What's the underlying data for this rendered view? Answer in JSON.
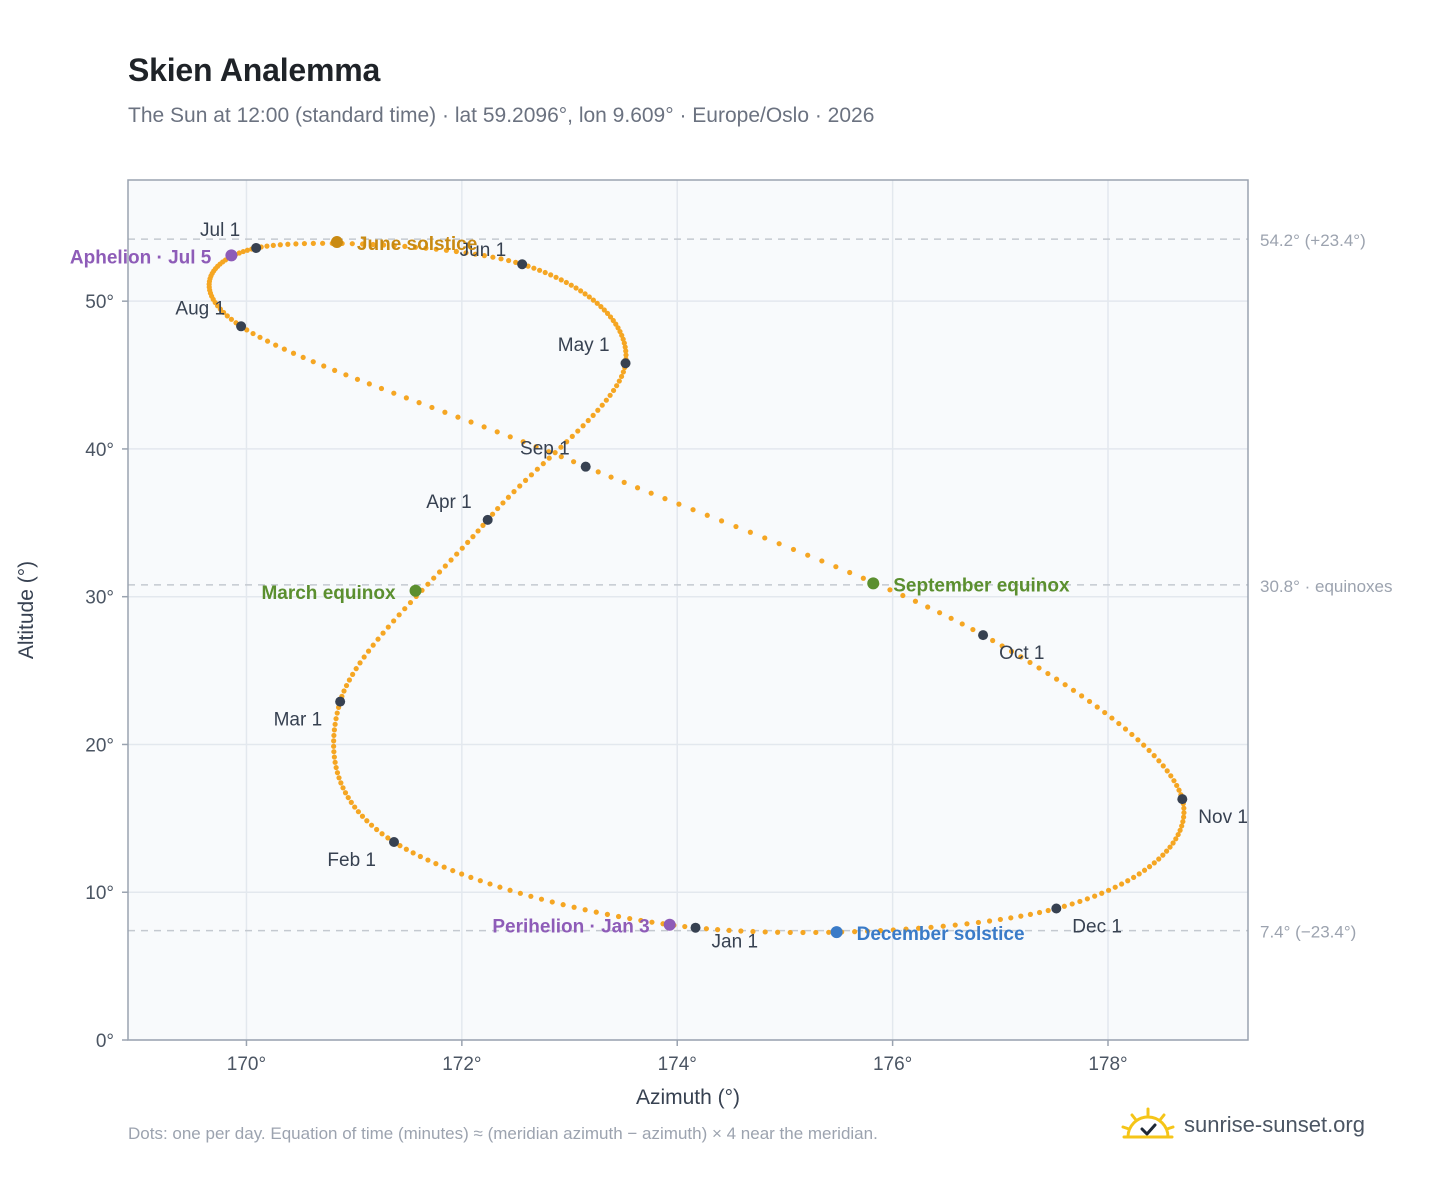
{
  "header": {
    "title": "Skien Analemma",
    "subtitle": "The Sun at 12:00 (standard time) · lat 59.2096°, lon 9.609° · Europe/Oslo · 2026"
  },
  "footer": {
    "note": "Dots: one per day. Equation of time (minutes) ≈ (meridian azimuth − azimuth) × 4 near the meridian.",
    "brand": "sunrise-sunset.org",
    "brand_icon": "sun-check-icon"
  },
  "colors": {
    "curve": "#f5a623",
    "month_marker": "#374151",
    "solstice_june": "#c98a12",
    "solstice_december": "#3a7bc8",
    "equinox": "#5b8f2f",
    "aphelion": "#8e5cb8",
    "reference_line": "#c4c9d0",
    "plot_bg": "#f8fafc",
    "grid": "#e3e8ee",
    "axis": "#9aa3b0"
  },
  "chart_data": {
    "type": "scatter",
    "title": "Skien Analemma",
    "xlabel": "Azimuth (°)",
    "ylabel": "Altitude (°)",
    "xlim": [
      168.9,
      179.3
    ],
    "ylim": [
      0,
      58.2
    ],
    "xticks": [
      170,
      172,
      174,
      176,
      178
    ],
    "xtick_labels": [
      "170°",
      "172°",
      "174°",
      "176°",
      "178°"
    ],
    "yticks": [
      0,
      10,
      20,
      30,
      40,
      50
    ],
    "ytick_labels": [
      "0°",
      "10°",
      "20°",
      "30°",
      "40°",
      "50°"
    ],
    "grid": true,
    "month_markers": [
      {
        "label": "Jan 1",
        "az": 174.17,
        "alt": 7.6
      },
      {
        "label": "Feb 1",
        "az": 171.37,
        "alt": 13.4
      },
      {
        "label": "Mar 1",
        "az": 170.87,
        "alt": 22.9
      },
      {
        "label": "Apr 1",
        "az": 172.24,
        "alt": 35.2
      },
      {
        "label": "May 1",
        "az": 173.52,
        "alt": 45.8
      },
      {
        "label": "Jun 1",
        "az": 172.56,
        "alt": 52.5
      },
      {
        "label": "Jul 1",
        "az": 170.09,
        "alt": 53.6
      },
      {
        "label": "Aug 1",
        "az": 169.95,
        "alt": 48.3
      },
      {
        "label": "Sep 1",
        "az": 173.15,
        "alt": 38.8
      },
      {
        "label": "Oct 1",
        "az": 176.84,
        "alt": 27.4
      },
      {
        "label": "Nov 1",
        "az": 178.69,
        "alt": 16.3
      },
      {
        "label": "Dec 1",
        "az": 177.52,
        "alt": 8.9
      }
    ],
    "events": [
      {
        "label": "June solstice",
        "az": 170.84,
        "alt": 54.0,
        "color_key": "solstice_june"
      },
      {
        "label": "December solstice",
        "az": 175.48,
        "alt": 7.3,
        "color_key": "solstice_december"
      },
      {
        "label": "March equinox",
        "az": 171.57,
        "alt": 30.4,
        "color_key": "equinox"
      },
      {
        "label": "September equinox",
        "az": 175.82,
        "alt": 30.9,
        "color_key": "equinox"
      },
      {
        "label": "Aphelion · Jul 5",
        "az": 169.86,
        "alt": 53.1,
        "color_key": "aphelion"
      },
      {
        "label": "Perihelion · Jan 3",
        "az": 173.93,
        "alt": 7.8,
        "color_key": "aphelion"
      }
    ],
    "reference_lines": [
      {
        "alt": 54.2,
        "label": "54.2° (+23.4°)"
      },
      {
        "alt": 30.8,
        "label": "30.8° · equinoxes"
      },
      {
        "alt": 7.4,
        "label": "7.4° (−23.4°)"
      }
    ]
  }
}
